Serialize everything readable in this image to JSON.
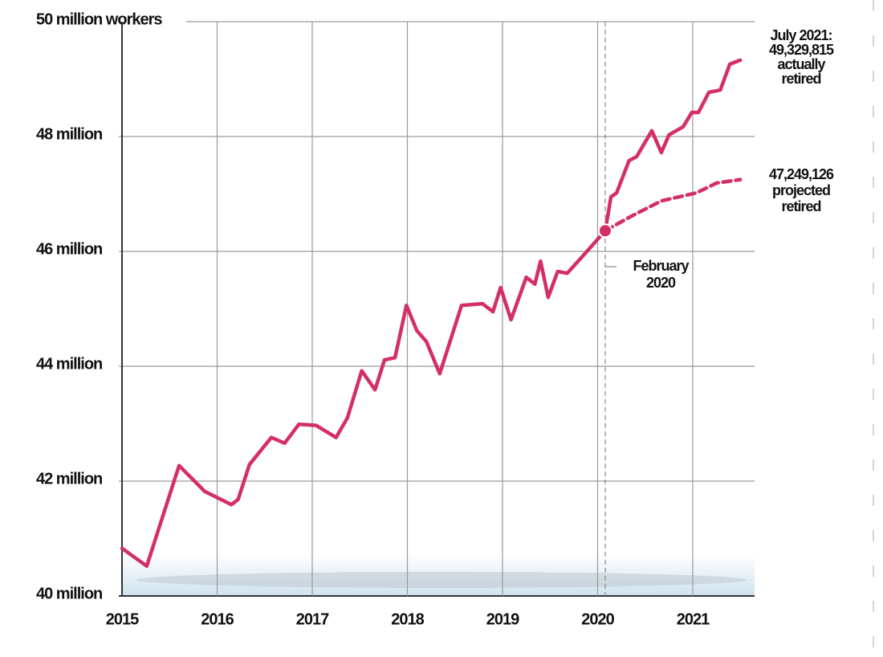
{
  "chart_data": {
    "type": "line",
    "xlim": [
      2015,
      2021.65
    ],
    "xticks": [
      2015,
      2016,
      2017,
      2018,
      2019,
      2020,
      2021
    ],
    "ylim": [
      40,
      50
    ],
    "yticks": [
      {
        "value": 40,
        "label": "40 million"
      },
      {
        "value": 42,
        "label": "42 million"
      },
      {
        "value": 44,
        "label": "44 million"
      },
      {
        "value": 46,
        "label": "46 million"
      },
      {
        "value": 48,
        "label": "48 million"
      },
      {
        "value": 50,
        "label": "50 million workers"
      }
    ],
    "grid": true,
    "series": [
      {
        "color": "#d42f64",
        "style": "solid",
        "x": [
          2015.0,
          2015.26,
          2015.6,
          2015.87,
          2016.15,
          2016.22,
          2016.34,
          2016.57,
          2016.71,
          2016.86,
          2017.04,
          2017.25,
          2017.37,
          2017.52,
          2017.66,
          2017.76,
          2017.87,
          2017.99,
          2018.1,
          2018.2,
          2018.34,
          2018.57,
          2018.79,
          2018.9,
          2018.98,
          2019.09,
          2019.25,
          2019.34,
          2019.4,
          2019.48,
          2019.58,
          2019.68,
          2019.85,
          2020.08,
          2020.14,
          2020.2,
          2020.33,
          2020.41,
          2020.57,
          2020.67,
          2020.75,
          2020.9,
          2020.99,
          2021.06,
          2021.17,
          2021.29,
          2021.39,
          2021.5
        ],
        "values": [
          40.83,
          40.52,
          42.27,
          41.82,
          41.59,
          41.68,
          42.29,
          42.76,
          42.66,
          42.99,
          42.97,
          42.76,
          43.1,
          43.92,
          43.59,
          44.11,
          44.15,
          45.06,
          44.62,
          44.43,
          43.87,
          45.06,
          45.09,
          44.95,
          45.37,
          44.81,
          45.55,
          45.43,
          45.83,
          45.2,
          45.65,
          45.62,
          45.93,
          46.36,
          46.95,
          47.02,
          47.58,
          47.65,
          48.1,
          47.72,
          48.03,
          48.17,
          48.42,
          48.42,
          48.77,
          48.81,
          49.26,
          49.33
        ]
      },
      {
        "color": "#d42f64",
        "style": "dashed",
        "x": [
          2020.08,
          2020.34,
          2020.67,
          2021.04,
          2021.25,
          2021.5
        ],
        "values": [
          46.36,
          46.6,
          46.88,
          47.02,
          47.19,
          47.25
        ]
      }
    ],
    "annotations": [
      {
        "lines": [
          "July 2021:",
          "49,329,815",
          "actually",
          "retired"
        ],
        "x": 2021.5,
        "y": 49.33
      },
      {
        "lines": [
          "47,249,126",
          "projected",
          "retired"
        ],
        "x": 2021.5,
        "y": 47.25
      },
      {
        "lines": [
          "February",
          "2020"
        ],
        "x": 2020.08,
        "y": 46.36
      }
    ]
  }
}
